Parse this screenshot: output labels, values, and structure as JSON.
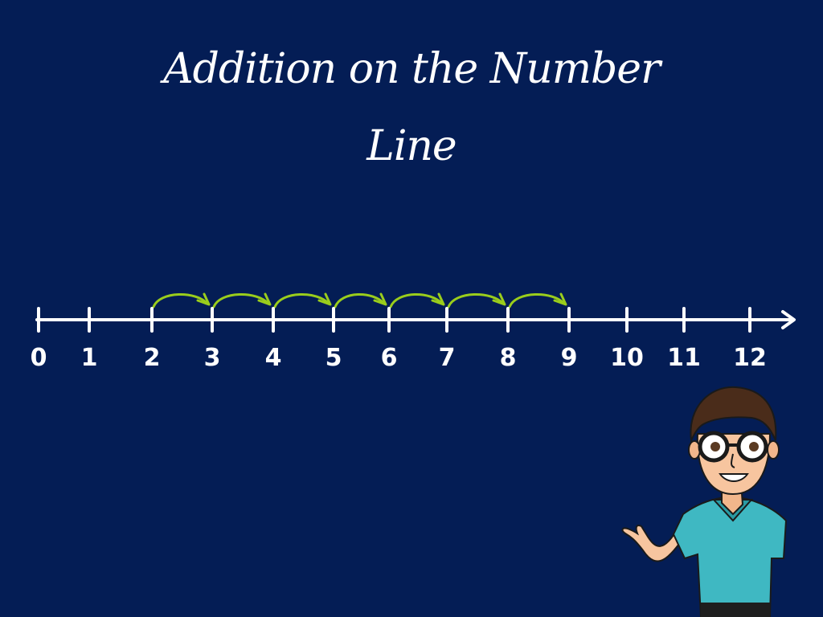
{
  "title": {
    "line1": "Addition on the Number",
    "line2": "Line"
  },
  "number_line": {
    "labels": [
      "0",
      "1",
      "2",
      "3",
      "4",
      "5",
      "6",
      "7",
      "8",
      "9",
      "10",
      "11",
      "12"
    ],
    "start": 2,
    "jumps": 7,
    "end": 9
  },
  "colors": {
    "background": "#041d55",
    "line": "#ffffff",
    "arrow": "#9acd1c"
  },
  "character": {
    "icon": "teacher-character-icon"
  }
}
